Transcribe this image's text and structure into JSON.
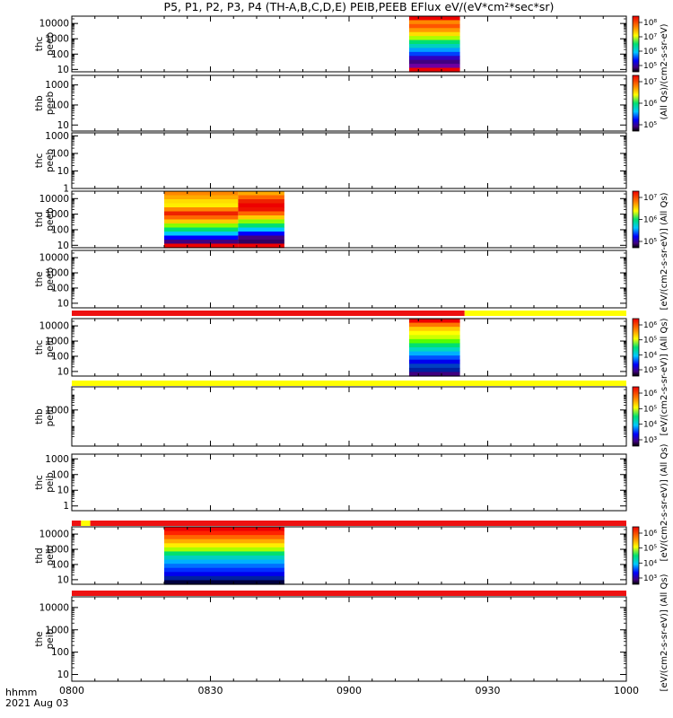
{
  "title": "P5, P1, P2, P3, P4 (TH-A,B,C,D,E) PEIB,PEEB EFlux eV/(eV*cm²*sec*sr)",
  "footer": {
    "hhmm_label": "hhmm",
    "date_label": "2021 Aug 03"
  },
  "colorbar_units": {
    "peeb_top": "(All Qs)/(cm2-s-sr-eV)",
    "peeb_mid": "[eV/(cm2-s-sr-eV)] (All Qs)",
    "peib_top": "[eV/(cm2-s-sr-eV)] (All Qs)",
    "peib_mid": "[eV/(cm2-s-sr-eV)] (All Qs)",
    "peib_bottom": "[eV/(cm2-s-sr-eV)] (All Qs)"
  },
  "chart_data": {
    "type": "heatmap",
    "x_axis": {
      "range": [
        "0800",
        "1000"
      ],
      "ticks": [
        "0800",
        "0830",
        "0900",
        "0930",
        "1000"
      ]
    },
    "flag_bars": [
      {
        "after_panel": "the peeb",
        "segments": [
          {
            "from": "0800",
            "to": "0925",
            "color": "#ee1111"
          },
          {
            "from": "0925",
            "to": "1000",
            "color": "#ffff00"
          }
        ]
      },
      {
        "after_panel": "thb peib",
        "segments": [
          {
            "from": "0800",
            "to": "1000",
            "color": "#ffff00"
          }
        ]
      },
      {
        "after_panel": "thc peib",
        "segments": [
          {
            "from": "0800",
            "to": "0802",
            "color": "#ee1111"
          },
          {
            "from": "0802",
            "to": "0804",
            "color": "#ffff00"
          },
          {
            "from": "0804",
            "to": "1000",
            "color": "#ee1111"
          }
        ]
      },
      {
        "after_panel": "thd peib",
        "segments": [
          {
            "from": "0800",
            "to": "1000",
            "color": "#ee1111"
          }
        ]
      }
    ],
    "panels": [
      {
        "label": "thc peeb",
        "ylabel_lines": [
          "thc",
          "peeb"
        ],
        "yticks": [
          "10000",
          "1000",
          "100",
          "10"
        ],
        "ylim": [
          7,
          30000
        ],
        "log": true,
        "blocks": [
          {
            "start": "0913",
            "end": "0924",
            "scheme": "electron_hot"
          }
        ]
      },
      {
        "label": "thb peeb",
        "ylabel_lines": [
          "thb",
          "peeb"
        ],
        "yticks": [
          "1000",
          "100",
          "10"
        ],
        "ylim": [
          5,
          3000
        ],
        "log": true,
        "blocks": []
      },
      {
        "label": "thc peeb",
        "ylabel_lines": [
          "thc",
          "peeb"
        ],
        "yticks": [
          "1000",
          "100",
          "10",
          "1"
        ],
        "ylim": [
          1,
          1500
        ],
        "log": true,
        "blocks": []
      },
      {
        "label": "thd peeb",
        "ylabel_lines": [
          "thd",
          "peeb"
        ],
        "yticks": [
          "10000",
          "1000",
          "100",
          "10"
        ],
        "ylim": [
          7,
          30000
        ],
        "log": true,
        "blocks": [
          {
            "start": "0820",
            "end": "0836",
            "scheme": "electron_warm"
          },
          {
            "start": "0836",
            "end": "0846",
            "scheme": "electron_red"
          }
        ]
      },
      {
        "label": "the peeb",
        "ylabel_lines": [
          "the",
          "peeb"
        ],
        "yticks": [
          "10000",
          "1000",
          "100",
          "10"
        ],
        "ylim": [
          5,
          30000
        ],
        "log": true,
        "blocks": []
      },
      {
        "label": "thc peib",
        "ylabel_lines": [
          "thc",
          "peib"
        ],
        "yticks": [
          "10000",
          "1000",
          "100",
          "10"
        ],
        "ylim": [
          5,
          30000
        ],
        "log": true,
        "blocks": [
          {
            "start": "0913",
            "end": "0924",
            "scheme": "ion"
          }
        ]
      },
      {
        "label": "thb peib",
        "ylabel_lines": [
          "thb",
          "peib"
        ],
        "yticks": [
          "1000"
        ],
        "ylim": [
          5,
          30000
        ],
        "log": true,
        "blocks": []
      },
      {
        "label": "thc peib",
        "ylabel_lines": [
          "thc",
          "peib"
        ],
        "yticks": [
          "1000",
          "100",
          "10",
          "1"
        ],
        "ylim": [
          0.5,
          2000
        ],
        "log": true,
        "blocks": []
      },
      {
        "label": "thd peib",
        "ylabel_lines": [
          "thd",
          "peib"
        ],
        "yticks": [
          "10000",
          "1000",
          "100",
          "10"
        ],
        "ylim": [
          5,
          30000
        ],
        "log": true,
        "blocks": [
          {
            "start": "0820",
            "end": "0846",
            "scheme": "ion_wide"
          }
        ]
      },
      {
        "label": "the peib",
        "ylabel_lines": [
          "the",
          "peib"
        ],
        "yticks": [
          "10000",
          "1000",
          "100",
          "10"
        ],
        "ylim": [
          5,
          30000
        ],
        "log": true,
        "blocks": []
      }
    ],
    "colorbars": [
      {
        "group": "peeb top",
        "ticks": [
          "10⁸",
          "10⁷",
          "10⁶",
          "10⁵"
        ]
      },
      {
        "group": "peeb mid",
        "ticks": [
          "10⁷",
          "10⁶",
          "10⁵"
        ]
      },
      {
        "group": "peib top",
        "ticks": [
          "10⁶",
          "10⁵",
          "10⁴",
          "10³"
        ]
      },
      {
        "group": "peib mid",
        "ticks": [
          "10⁶",
          "10⁵",
          "10⁴",
          "10³"
        ]
      },
      {
        "group": "peib bottom",
        "ticks": [
          "10⁶",
          "10⁵",
          "10⁴",
          "10³"
        ]
      }
    ]
  }
}
